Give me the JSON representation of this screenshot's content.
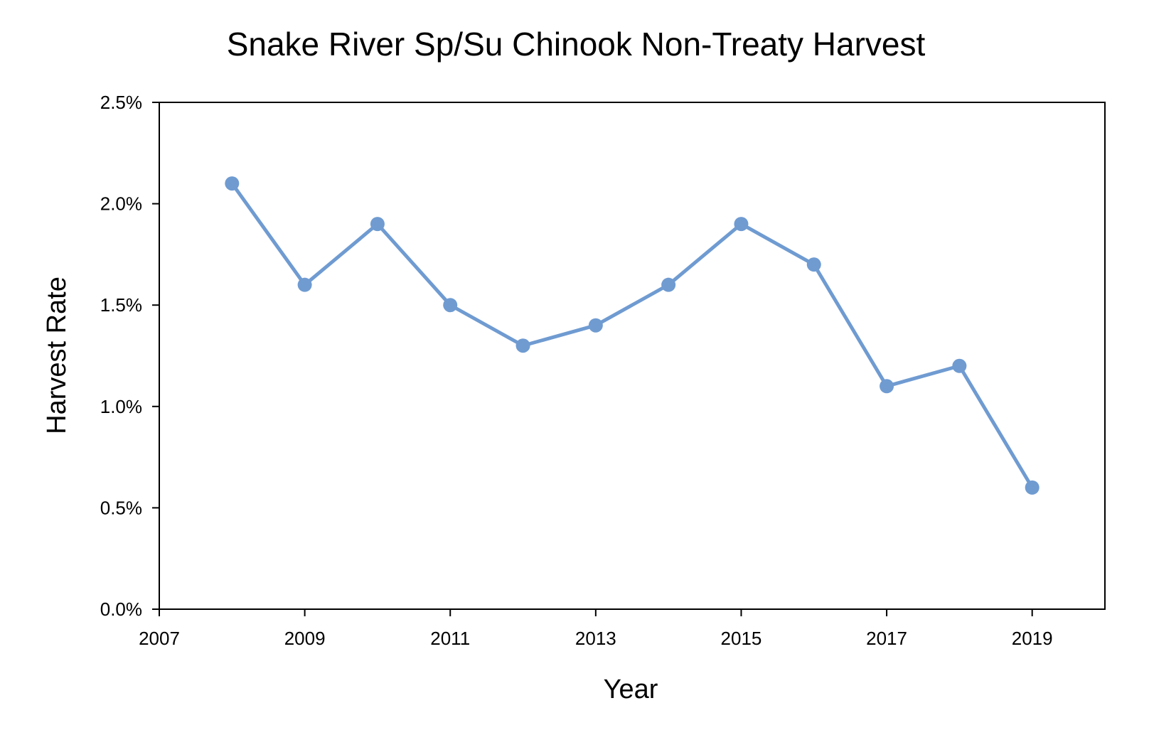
{
  "chart_data": {
    "type": "line",
    "title": "Snake River Sp/Su Chinook Non-Treaty Harvest",
    "xlabel": "Year",
    "ylabel": "Harvest Rate",
    "xlim": [
      2007,
      2020
    ],
    "ylim": [
      0,
      0.025
    ],
    "x_ticks": [
      "2007",
      "2009",
      "2011",
      "2013",
      "2015",
      "2017",
      "2019"
    ],
    "y_ticks": [
      "0.0%",
      "0.5%",
      "1.0%",
      "1.5%",
      "2.0%",
      "2.5%"
    ],
    "grid": false,
    "legend": "none",
    "series": [
      {
        "color": "#6f9bd1",
        "x": [
          2008,
          2009,
          2010,
          2011,
          2012,
          2013,
          2014,
          2015,
          2016,
          2017,
          2018,
          2019
        ],
        "values": [
          0.021,
          0.016,
          0.019,
          0.015,
          0.013,
          0.014,
          0.016,
          0.019,
          0.017,
          0.011,
          0.012,
          0.006
        ]
      }
    ]
  }
}
